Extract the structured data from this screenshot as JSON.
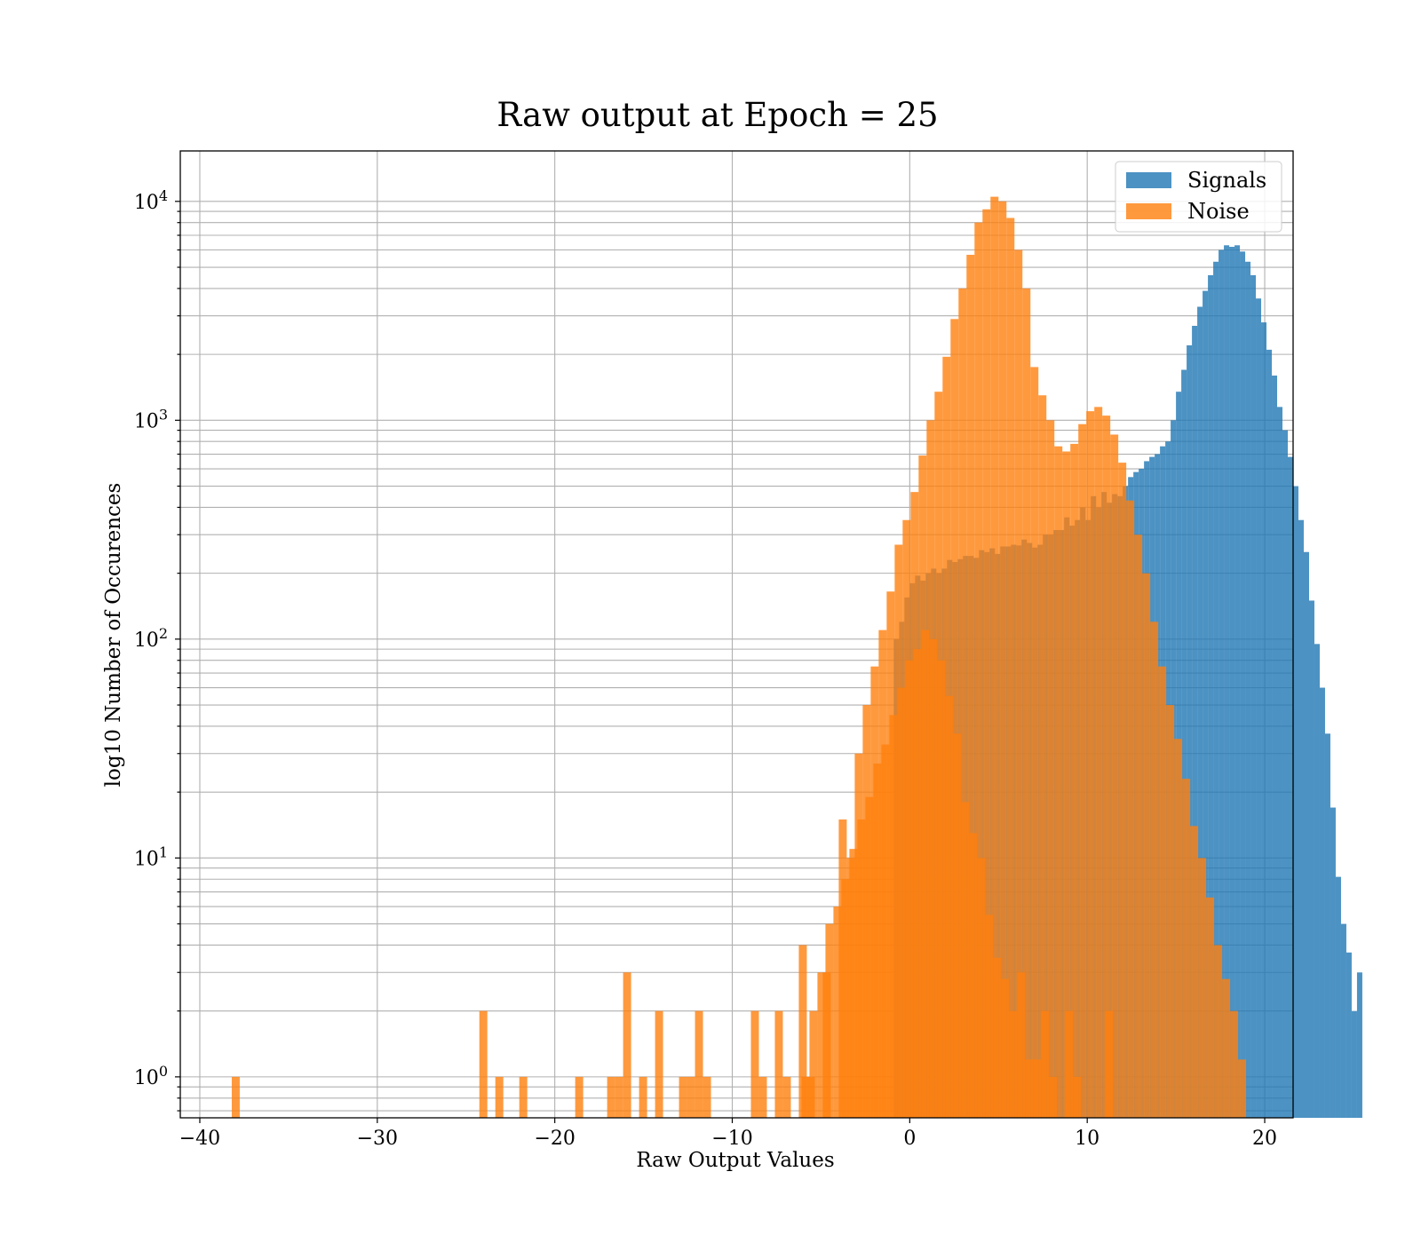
{
  "chart_data": {
    "type": "bar",
    "title": "Raw output at Epoch = 25",
    "xlabel": "Raw Output Values",
    "ylabel": "log10 Number of Occurences",
    "xlim": [
      -41.1,
      21.6
    ],
    "ylim": [
      0.65,
      17000
    ],
    "yscale": "log",
    "grid": true,
    "legend_position": "top-right",
    "x_ticks": [
      -40,
      -30,
      -20,
      -10,
      0,
      10,
      20
    ],
    "x_tick_labels": [
      "−40",
      "−30",
      "−20",
      "−10",
      "0",
      "10",
      "20"
    ],
    "y_ticks": [
      1,
      10,
      100,
      1000,
      10000
    ],
    "y_tick_labels": [
      {
        "base": "10",
        "exp": "0"
      },
      {
        "base": "10",
        "exp": "1"
      },
      {
        "base": "10",
        "exp": "2"
      },
      {
        "base": "10",
        "exp": "3"
      },
      {
        "base": "10",
        "exp": "4"
      }
    ],
    "series": [
      {
        "name": "Signals",
        "color": "#1f77b4",
        "opacity": 0.8,
        "bin_start": -0.9,
        "bin_width": 0.3,
        "values": [
          100,
          120,
          155,
          180,
          195,
          185,
          200,
          210,
          200,
          210,
          230,
          225,
          232,
          240,
          240,
          235,
          255,
          250,
          260,
          245,
          265,
          265,
          270,
          268,
          285,
          275,
          262,
          270,
          300,
          300,
          315,
          315,
          360,
          330,
          350,
          400,
          350,
          450,
          400,
          470,
          420,
          460,
          450,
          500,
          550,
          580,
          600,
          650,
          680,
          700,
          760,
          800,
          1000,
          1350,
          1700,
          2200,
          2700,
          3300,
          3900,
          4600,
          5300,
          6000,
          6300,
          6200,
          6300,
          5900,
          5300,
          4600,
          3600,
          2800,
          2100,
          1600,
          1150,
          900,
          680,
          500,
          350,
          250,
          150,
          95,
          60,
          37,
          17,
          8.2,
          5,
          3.7,
          2,
          3
        ]
      },
      {
        "name": "Noise",
        "color": "#ff7f0e",
        "opacity": 0.8,
        "bin_start": -38.2,
        "bin_width": 0.45,
        "values": [
          1,
          0,
          0,
          0,
          0,
          0,
          0,
          0,
          0,
          0,
          0,
          0,
          0,
          0,
          0,
          0,
          0,
          0,
          0,
          0,
          0,
          0,
          0,
          0,
          0,
          0,
          0,
          0,
          0,
          0,
          0,
          2,
          0,
          1,
          0,
          0,
          1,
          0,
          0,
          0,
          0,
          0,
          0,
          1,
          0,
          0,
          0,
          1,
          1,
          3,
          0,
          1,
          0,
          2,
          0,
          0,
          1,
          1,
          2,
          1,
          0,
          0,
          0,
          0,
          0,
          2,
          1,
          0,
          2,
          1,
          0,
          4,
          1,
          0,
          3,
          0,
          15,
          10,
          30,
          50,
          75,
          110,
          165,
          270,
          350,
          470,
          690,
          1000,
          1350,
          1950,
          2900,
          4000,
          5700,
          8000,
          9200,
          10500,
          10000,
          8400,
          6000,
          4000,
          1750,
          1300,
          1000,
          760,
          720,
          780,
          960,
          1100,
          1150,
          1050,
          860,
          640,
          430,
          300,
          200,
          120,
          75,
          50,
          35,
          23,
          14,
          10,
          6.6,
          4,
          2.8,
          2,
          1.2,
          0,
          0,
          0,
          0,
          0,
          0,
          0,
          0,
          0,
          0,
          0,
          0,
          0,
          0,
          0,
          0,
          0,
          0,
          0,
          0,
          0,
          0,
          0,
          0
        ]
      },
      {
        "name": "",
        "color": "#ff7f0e",
        "opacity": 0.8,
        "bin_start": -6.1,
        "bin_width": 0.45,
        "values": [
          1,
          2,
          3,
          5,
          6,
          8,
          11,
          15,
          19,
          27,
          33,
          45,
          60,
          80,
          90,
          110,
          100,
          80,
          55,
          37,
          18,
          13,
          10,
          5.5,
          3.5,
          2.8,
          2,
          3,
          1.2,
          1.2,
          2,
          1,
          0,
          2,
          1,
          0,
          0,
          0,
          2
        ]
      }
    ],
    "legend": [
      {
        "label": "Signals",
        "color": "#1f77b4"
      },
      {
        "label": "Noise",
        "color": "#ff7f0e"
      }
    ]
  }
}
